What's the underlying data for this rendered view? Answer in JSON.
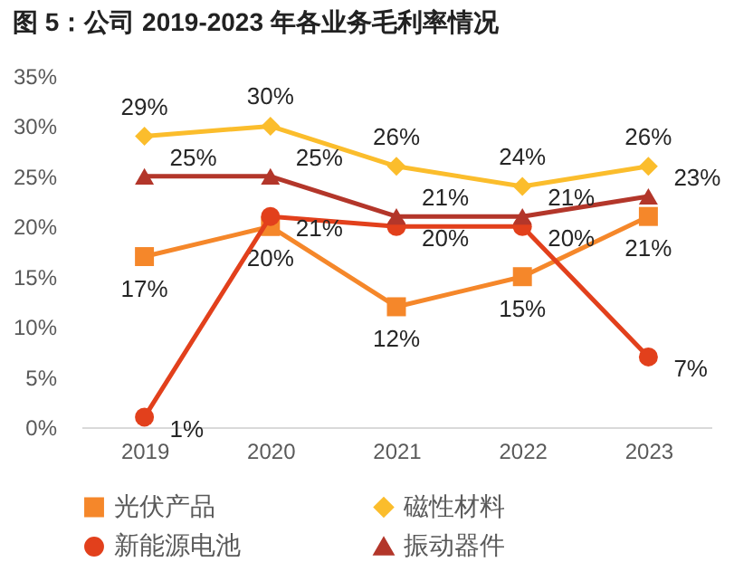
{
  "chart_data": {
    "type": "line",
    "title": "图 5：公司 2019-2023 年各业务毛利率情况",
    "categories": [
      "2019",
      "2020",
      "2021",
      "2022",
      "2023"
    ],
    "series": [
      {
        "name": "光伏产品",
        "color": "#f5872a",
        "marker": "square",
        "values": [
          17,
          20,
          12,
          15,
          21
        ],
        "value_labels": [
          "17%",
          "20%",
          "12%",
          "15%",
          "21%"
        ]
      },
      {
        "name": "磁性材料",
        "color": "#fbbd2c",
        "marker": "diamond",
        "values": [
          29,
          30,
          26,
          24,
          26
        ],
        "value_labels": [
          "29%",
          "30%",
          "26%",
          "24%",
          "26%"
        ]
      },
      {
        "name": "新能源电池",
        "color": "#e2401c",
        "marker": "circle",
        "values": [
          1,
          21,
          20,
          20,
          7
        ],
        "value_labels": [
          "1%",
          "21%",
          "20%",
          "20%",
          "7%"
        ]
      },
      {
        "name": "振动器件",
        "color": "#b3362a",
        "marker": "triangle",
        "values": [
          25,
          25,
          21,
          21,
          23
        ],
        "value_labels": [
          "25%",
          "25%",
          "21%",
          "21%",
          "23%"
        ]
      }
    ],
    "ylim": [
      0,
      35
    ],
    "yticks": [
      {
        "value": 0,
        "label": "0%"
      },
      {
        "value": 5,
        "label": "5%"
      },
      {
        "value": 10,
        "label": "10%"
      },
      {
        "value": 15,
        "label": "15%"
      },
      {
        "value": 20,
        "label": "20%"
      },
      {
        "value": 25,
        "label": "25%"
      },
      {
        "value": 30,
        "label": "30%"
      },
      {
        "value": 35,
        "label": "35%"
      }
    ],
    "grid": false,
    "legend": "bottom"
  }
}
